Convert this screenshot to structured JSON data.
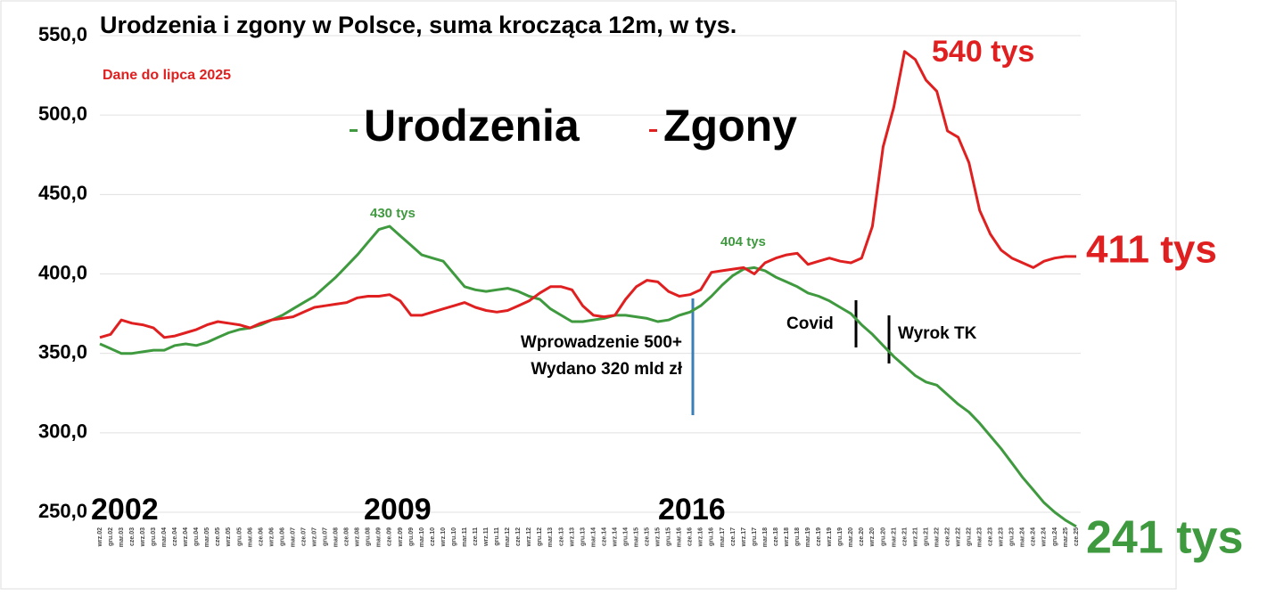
{
  "chart_data": {
    "type": "line",
    "title": "Urodzenia i zgony w Polsce, suma krocząca 12m, w tys.",
    "subtitle": "Dane do lipca 2025",
    "categories": [
      "wrz.02",
      "gru.02",
      "mar.03",
      "cze.03",
      "wrz.03",
      "gru.03",
      "mar.04",
      "cze.04",
      "wrz.04",
      "gru.04",
      "mar.05",
      "cze.05",
      "wrz.05",
      "gru.05",
      "mar.06",
      "cze.06",
      "wrz.06",
      "gru.06",
      "mar.07",
      "cze.07",
      "wrz.07",
      "gru.07",
      "mar.08",
      "cze.08",
      "wrz.08",
      "gru.08",
      "mar.09",
      "cze.09",
      "wrz.09",
      "gru.09",
      "mar.10",
      "cze.10",
      "wrz.10",
      "gru.10",
      "mar.11",
      "cze.11",
      "wrz.11",
      "gru.11",
      "mar.12",
      "cze.12",
      "wrz.12",
      "gru.12",
      "mar.13",
      "cze.13",
      "wrz.13",
      "gru.13",
      "mar.14",
      "cze.14",
      "wrz.14",
      "gru.14",
      "mar.15",
      "cze.15",
      "wrz.15",
      "gru.15",
      "mar.16",
      "cze.16",
      "wrz.16",
      "gru.16",
      "mar.17",
      "cze.17",
      "wrz.17",
      "gru.17",
      "mar.18",
      "cze.18",
      "wrz.18",
      "gru.18",
      "mar.19",
      "cze.19",
      "wrz.19",
      "gru.19",
      "mar.20",
      "cze.20",
      "wrz.20",
      "gru.20",
      "mar.21",
      "cze.21",
      "wrz.21",
      "gru.21",
      "mar.22",
      "cze.22",
      "wrz.22",
      "gru.22",
      "mar.23",
      "cze.23",
      "wrz.23",
      "gru.23",
      "mar.24",
      "cze.24",
      "wrz.24",
      "gru.24",
      "mar.25",
      "cze.25"
    ],
    "series": [
      {
        "name": "Urodzenia",
        "color": "#3f9a3f",
        "values": [
          356,
          353,
          350,
          350,
          351,
          352,
          352,
          355,
          356,
          355,
          357,
          360,
          363,
          365,
          366,
          368,
          371,
          374,
          378,
          382,
          386,
          392,
          398,
          405,
          412,
          420,
          428,
          430,
          424,
          418,
          412,
          410,
          408,
          400,
          392,
          390,
          389,
          390,
          391,
          389,
          386,
          384,
          378,
          374,
          370,
          370,
          371,
          372,
          374,
          374,
          373,
          372,
          370,
          371,
          374,
          376,
          380,
          386,
          393,
          399,
          403,
          404,
          402,
          398,
          395,
          392,
          388,
          386,
          383,
          379,
          375,
          368,
          362,
          355,
          348,
          342,
          336,
          332,
          330,
          324,
          318,
          313,
          306,
          298,
          290,
          281,
          272,
          264,
          256,
          250,
          245,
          241
        ]
      },
      {
        "name": "Zgony",
        "color": "#e02020",
        "values": [
          360,
          362,
          371,
          369,
          368,
          366,
          360,
          361,
          363,
          365,
          368,
          370,
          369,
          368,
          366,
          369,
          371,
          372,
          373,
          376,
          379,
          380,
          381,
          382,
          385,
          386,
          386,
          387,
          383,
          374,
          374,
          376,
          378,
          380,
          382,
          379,
          377,
          376,
          377,
          380,
          383,
          388,
          392,
          392,
          390,
          380,
          374,
          373,
          374,
          384,
          392,
          396,
          395,
          389,
          386,
          387,
          390,
          401,
          402,
          403,
          404,
          400,
          407,
          410,
          412,
          413,
          406,
          408,
          410,
          408,
          407,
          410,
          430,
          480,
          505,
          540,
          535,
          522,
          515,
          490,
          486,
          470,
          440,
          425,
          415,
          410,
          407,
          404,
          408,
          410,
          411,
          411
        ]
      }
    ],
    "ylim": [
      250,
      550
    ],
    "yticks": [
      {
        "value": 250,
        "label": "250,0"
      },
      {
        "value": 300,
        "label": "300,0"
      },
      {
        "value": 350,
        "label": "350,0"
      },
      {
        "value": 400,
        "label": "400,0"
      },
      {
        "value": 450,
        "label": "450,0"
      },
      {
        "value": 500,
        "label": "500,0"
      },
      {
        "value": 550,
        "label": "550,0"
      }
    ],
    "grid": true,
    "annotations": {
      "year_a": "2002",
      "year_b": "2009",
      "year_c": "2016",
      "births_peak": "430 tys",
      "births_peak2": "404 tys",
      "deaths_peak": "540 tys",
      "deaths_last": "411 tys",
      "births_last": "241 tys",
      "program_1": "Wprowadzenie 500+",
      "program_2": "Wydano 320 mld zł",
      "covid": "Covid",
      "ruling": "Wyrok TK"
    }
  }
}
